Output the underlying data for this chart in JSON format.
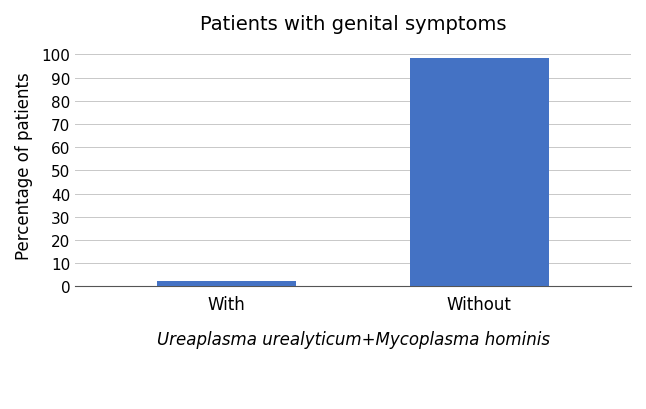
{
  "title": "Patients with genital symptoms",
  "categories": [
    "With",
    "Without"
  ],
  "values": [
    2.5,
    98.5
  ],
  "bar_color": "#4472C4",
  "ylabel": "Percentage of patients",
  "xlabel_text": "Ureaplasma urealyticum+Mycoplasma hominis",
  "ylim": [
    0,
    105
  ],
  "yticks": [
    0,
    10,
    20,
    30,
    40,
    50,
    60,
    70,
    80,
    90,
    100
  ],
  "bar_width": 0.55,
  "title_fontsize": 14,
  "ylabel_fontsize": 12,
  "tick_fontsize": 11,
  "xlabel_fontsize": 12,
  "xtick_fontsize": 12,
  "background_color": "#ffffff",
  "grid_color": "#c8c8c8",
  "bottom_spine_color": "#555555"
}
